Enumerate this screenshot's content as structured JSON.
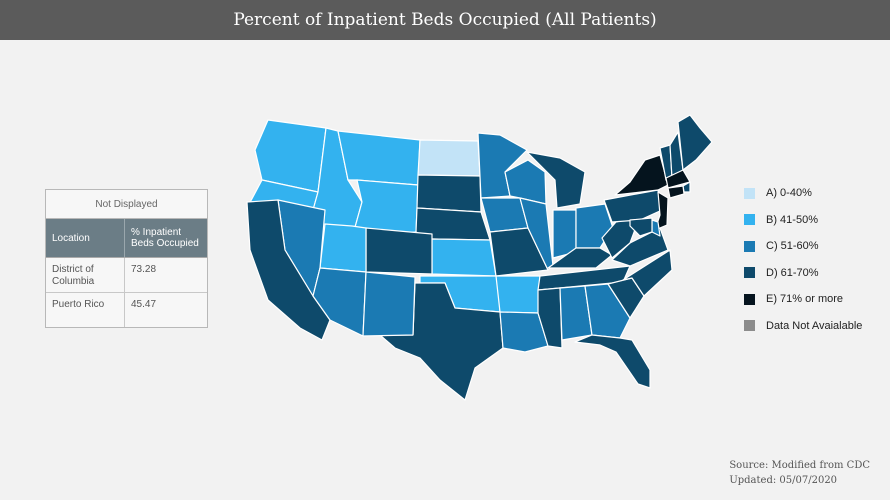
{
  "title": "Percent of Inpatient Beds Occupied (All Patients)",
  "colors": {
    "A": "#c2e3f7",
    "B": "#33b2ef",
    "C": "#1b7ab3",
    "D": "#0e4a6b",
    "E": "#05141e",
    "NA": "#8c8c8c"
  },
  "legend": [
    {
      "key": "A",
      "label": "A) 0-40%"
    },
    {
      "key": "B",
      "label": "B) 41-50%"
    },
    {
      "key": "C",
      "label": "C) 51-60%"
    },
    {
      "key": "D",
      "label": "D) 61-70%"
    },
    {
      "key": "E",
      "label": "E) 71% or more"
    },
    {
      "key": "NA",
      "label": "Data Not Avaialable"
    }
  ],
  "not_displayed": {
    "title": "Not Displayed",
    "headers": [
      "Location",
      "% Inpatient Beds Occupied"
    ],
    "rows": [
      {
        "location": "District of Columbia",
        "value": "73.28"
      },
      {
        "location": "Puerto Rico",
        "value": "45.47"
      }
    ]
  },
  "states": {
    "WA": "B",
    "OR": "B",
    "ID": "B",
    "MT": "B",
    "WY": "B",
    "ND": "A",
    "SD": "D",
    "NE": "D",
    "KS": "B",
    "OK": "B",
    "TX": "D",
    "CO": "D",
    "UT": "B",
    "NV": "C",
    "CA": "D",
    "AZ": "C",
    "NM": "C",
    "MN": "C",
    "IA": "C",
    "MO": "D",
    "AR": "B",
    "LA": "C",
    "WI": "C",
    "IL": "C",
    "MI": "D",
    "IN": "C",
    "OH": "C",
    "KY": "D",
    "TN": "D",
    "MS": "D",
    "AL": "C",
    "GA": "C",
    "FL": "D",
    "SC": "D",
    "NC": "D",
    "VA": "D",
    "WV": "D",
    "PA": "D",
    "NY": "E",
    "VT": "D",
    "NH": "D",
    "ME": "D",
    "MA": "E",
    "CT": "E",
    "RI": "D",
    "NJ": "E",
    "DE": "C",
    "MD": "D"
  },
  "source": {
    "line1": "Source: Modified from CDC",
    "line2": "Updated: 05/07/2020"
  }
}
